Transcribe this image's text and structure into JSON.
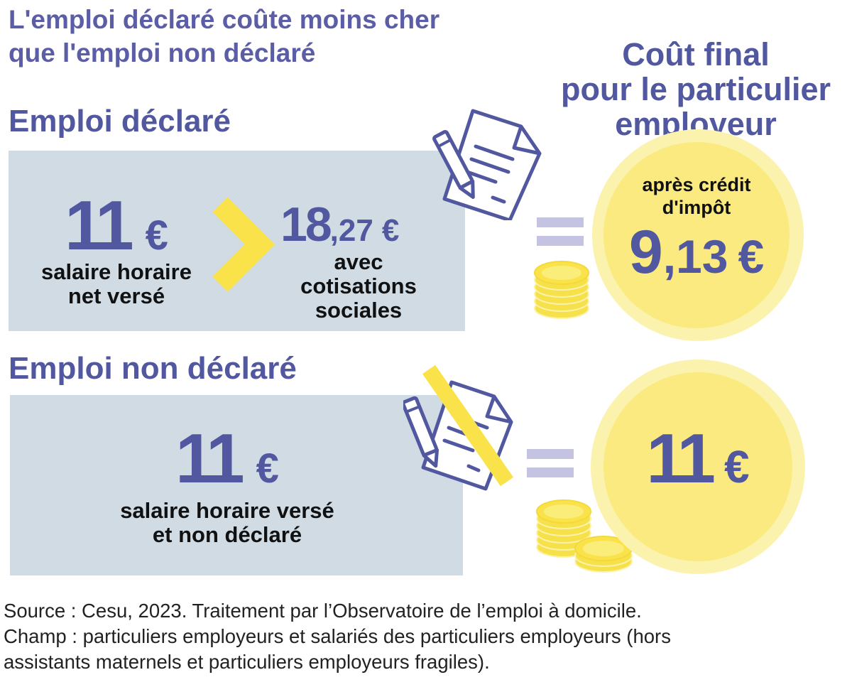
{
  "title": {
    "line1": "L'emploi déclaré coûte moins cher",
    "line2": "que l'emploi non déclaré"
  },
  "final_cost": {
    "line1": "Coût final",
    "line2": "pour le particulier",
    "line3": "employeur"
  },
  "declared": {
    "heading": "Emploi déclaré",
    "net_amount": "11",
    "net_unit": "€",
    "net_label_line1": "salaire horaire",
    "net_label_line2": "net versé",
    "gross_amount_int": "18",
    "gross_amount_dec": ",27",
    "gross_unit": "€",
    "gross_label_line1": "avec",
    "gross_label_line2": "cotisations",
    "gross_label_line3": "sociales",
    "final_note_line1": "après crédit",
    "final_note_line2": "d'impôt",
    "final_int": "9",
    "final_dec": ",13",
    "final_unit": "€"
  },
  "undeclared": {
    "heading": "Emploi non déclaré",
    "amount": "11",
    "unit": "€",
    "label_line1": "salaire horaire versé",
    "label_line2": "et non déclaré",
    "final_amount": "11",
    "final_unit": "€"
  },
  "source": {
    "line1": "Source : Cesu, 2023. Traitement par l’Observatoire de l’emploi à domicile.",
    "line2": "Champ : particuliers employeurs et salariés des particuliers employeurs (hors",
    "line3": "assistants maternels et particuliers employeurs fragiles)."
  },
  "colors": {
    "title": "#5b5ea6",
    "heading": "#5158a0",
    "panel": "#d0dbe4",
    "accent_yellow": "#fae34a",
    "coin_light": "#fbf3ad",
    "coin_inner": "#faea80",
    "equals": "#c4c4e2"
  },
  "icons": [
    "document-pen-icon",
    "crossed-document-pen-icon",
    "coin-stack-icon",
    "chevron-right-icon",
    "equals-icon",
    "coin-icon"
  ]
}
